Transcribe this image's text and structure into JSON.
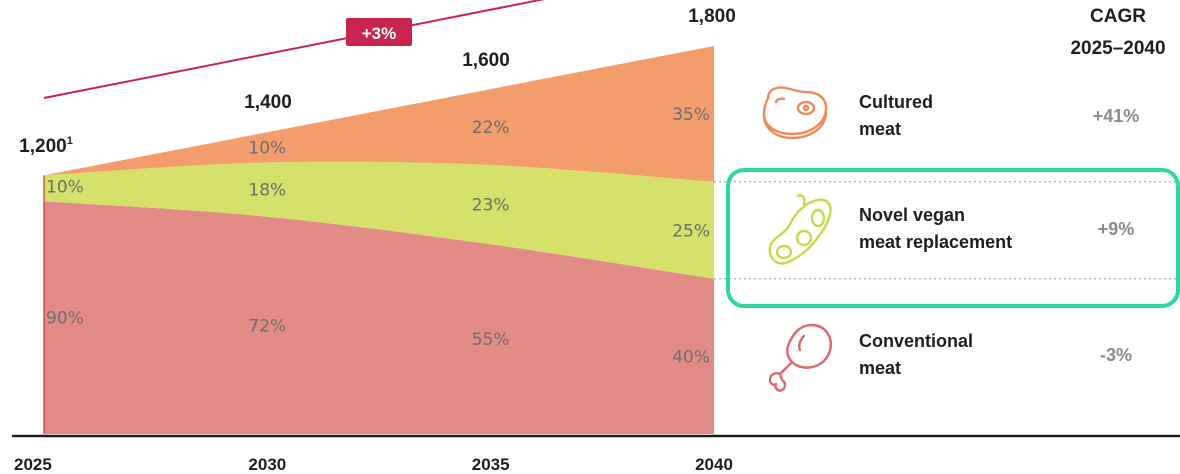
{
  "chart_data": {
    "type": "area",
    "x": [
      "2025",
      "2030",
      "2035",
      "2040"
    ],
    "totals": [
      1200,
      1400,
      1600,
      1800
    ],
    "total_labels": [
      "1,200",
      "1,400",
      "1,600",
      "1,800"
    ],
    "total_footnote": "1",
    "growth_badge": "+3%",
    "series": [
      {
        "name": "Conventional meat",
        "values": [
          90,
          72,
          55,
          40
        ],
        "labels": [
          "90%",
          "72%",
          "55%",
          "40%"
        ],
        "color": "#e38b86",
        "cagr": "-3%",
        "icon": "drumstick-icon"
      },
      {
        "name": "Novel vegan meat replacement",
        "values": [
          10,
          18,
          23,
          25
        ],
        "labels": [
          "10%",
          "18%",
          "23%",
          "25%"
        ],
        "color": "#d5e16b",
        "cagr": "+9%",
        "icon": "soybean-icon"
      },
      {
        "name": "Cultured meat",
        "values": [
          0,
          10,
          22,
          35
        ],
        "labels": [
          "",
          "10%",
          "22%",
          "35%"
        ],
        "color": "#f29d6b",
        "cagr": "+41%",
        "icon": "steak-icon"
      }
    ],
    "legend_lines": {
      "Cultured meat": [
        "Cultured",
        "meat"
      ],
      "Novel vegan meat replacement": [
        "Novel vegan",
        "meat replacement"
      ],
      "Conventional meat": [
        "Conventional",
        "meat"
      ]
    },
    "cagr_header": [
      "CAGR",
      "2025–2040"
    ],
    "highlight": "Novel vegan meat replacement",
    "highlight_color": "#2fd6a4",
    "trend_color": "#c8254e",
    "ylim": [
      0,
      1800
    ]
  }
}
